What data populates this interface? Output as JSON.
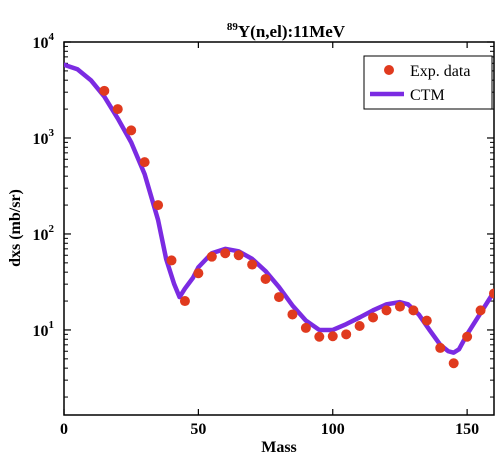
{
  "chart_data": {
    "type": "line",
    "title_sup": "89",
    "title_main": "Y(n,el):11MeV",
    "xlabel": "Mass",
    "ylabel": "dxs (mb/sr)",
    "xlim": [
      0,
      160
    ],
    "ylim": [
      1.3,
      10000
    ],
    "yscale": "log",
    "x_ticks": [
      0,
      50,
      100,
      150
    ],
    "x_tick_labels": [
      "0",
      "50",
      "100",
      "150"
    ],
    "y_ticks": [
      10,
      100,
      1000,
      10000
    ],
    "y_tick_base": "10",
    "y_tick_exps": [
      "1",
      "2",
      "3",
      "4"
    ],
    "grid": false,
    "legend_position": "top-right",
    "colors": {
      "exp": "#e03a1e",
      "ctm": "#7b2be2"
    },
    "series": [
      {
        "name": "Exp. data",
        "style": "markers",
        "x": [
          15,
          20,
          25,
          30,
          35,
          40,
          45,
          50,
          55,
          60,
          65,
          70,
          75,
          80,
          85,
          90,
          95,
          100,
          105,
          110,
          115,
          120,
          125,
          130,
          135,
          140,
          145,
          150,
          155,
          160
        ],
        "y": [
          3100,
          2000,
          1200,
          560,
          200,
          53,
          20,
          39,
          58,
          63,
          60,
          48,
          34,
          22,
          14.5,
          10.5,
          8.5,
          8.6,
          9,
          11,
          13.5,
          16,
          17.5,
          16,
          12.5,
          6.5,
          4.5,
          8.5,
          16,
          24
        ]
      },
      {
        "name": "CTM",
        "style": "line",
        "x": [
          0,
          5,
          10,
          15,
          20,
          25,
          30,
          35,
          38,
          41,
          43,
          45,
          48,
          50,
          55,
          60,
          65,
          70,
          75,
          80,
          85,
          90,
          95,
          100,
          105,
          110,
          115,
          120,
          125,
          128,
          132,
          136,
          140,
          143,
          145,
          147,
          150,
          155,
          160
        ],
        "y": [
          5800,
          5200,
          4000,
          2700,
          1600,
          900,
          420,
          140,
          55,
          30,
          22,
          27,
          35,
          45,
          63,
          70,
          66,
          55,
          41,
          28,
          18,
          12.5,
          10,
          10,
          11.5,
          13.5,
          16,
          18.5,
          19.5,
          18.5,
          14.5,
          10,
          7,
          6,
          5.8,
          6.3,
          9,
          15,
          25
        ]
      }
    ]
  }
}
